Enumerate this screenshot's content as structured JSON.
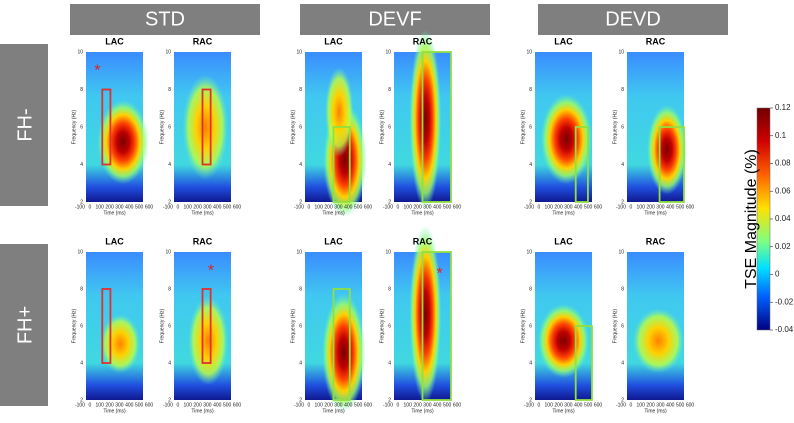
{
  "columns": [
    "STD",
    "DEVF",
    "DEVD"
  ],
  "rows": [
    "FH-",
    "FH+"
  ],
  "panel_labels": [
    "LAC",
    "RAC"
  ],
  "y_axis_label": "Frequency (Hz)",
  "x_axis_label": "Time (ms)",
  "y_ticks": [
    "2",
    "4",
    "6",
    "8",
    "10"
  ],
  "x_ticks": [
    "-100",
    "0",
    "100",
    "200",
    "300",
    "400",
    "500",
    "600"
  ],
  "colorbar": {
    "label": "TSE Magnitude (%)",
    "ticks": [
      "0.12",
      "0.1",
      "0.08",
      "0.06",
      "0.04",
      "0.02",
      "0",
      "-0.02",
      "-0.04"
    ]
  },
  "significance_marker": "*"
}
